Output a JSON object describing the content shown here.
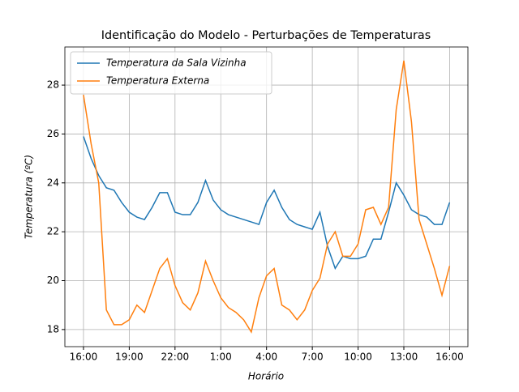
{
  "chart_data": {
    "type": "line",
    "title": "Identificação do Modelo - Perturbações de Temperaturas",
    "xlabel": "Horário",
    "ylabel": "Temperatura (ºC)",
    "x": [
      0,
      0.5,
      1,
      1.5,
      2,
      2.5,
      3,
      3.5,
      4,
      4.5,
      5,
      5.5,
      6,
      6.5,
      7,
      7.5,
      8,
      8.5,
      9,
      9.5,
      10,
      10.5,
      11,
      11.5,
      12,
      12.5,
      13,
      13.5,
      14,
      14.5,
      15,
      15.5,
      16,
      16.5,
      17,
      17.5,
      18,
      18.5,
      19,
      19.5,
      20,
      20.5,
      21,
      21.5,
      22,
      22.5,
      23,
      23.5,
      24
    ],
    "series": [
      {
        "name": "Temperatura da Sala Vizinha",
        "color": "#1f77b4",
        "values": [
          25.9,
          25.0,
          24.3,
          23.8,
          23.7,
          23.2,
          22.8,
          22.6,
          22.5,
          23.0,
          23.6,
          23.6,
          22.8,
          22.7,
          22.7,
          23.2,
          24.1,
          23.3,
          22.9,
          22.7,
          22.6,
          22.5,
          22.4,
          22.3,
          23.2,
          23.7,
          23.0,
          22.5,
          22.3,
          22.2,
          22.1,
          22.8,
          21.4,
          20.5,
          21.0,
          20.9,
          20.9,
          21.0,
          21.7,
          21.7,
          22.8,
          24.0,
          23.5,
          22.9,
          22.7,
          22.6,
          22.3,
          22.3,
          23.2
        ]
      },
      {
        "name": "Temperatura Externa",
        "color": "#ff7f0e",
        "values": [
          27.6,
          25.6,
          24.0,
          18.8,
          18.2,
          18.2,
          18.4,
          19.0,
          18.7,
          19.6,
          20.5,
          20.9,
          19.8,
          19.1,
          18.8,
          19.5,
          20.8,
          20.0,
          19.3,
          18.9,
          18.7,
          18.4,
          17.9,
          19.3,
          20.2,
          20.5,
          19.0,
          18.8,
          18.4,
          18.8,
          19.6,
          20.1,
          21.5,
          22.0,
          21.0,
          21.0,
          21.5,
          22.9,
          23.0,
          22.3,
          23.0,
          27.0,
          29.0,
          26.5,
          22.5,
          21.5,
          20.5,
          19.4,
          20.6
        ]
      }
    ],
    "xlim": [
      -1.22,
      25.2
    ],
    "ylim": [
      17.3,
      29.56
    ],
    "xticks": [
      {
        "value": 0,
        "label": "16:00"
      },
      {
        "value": 3,
        "label": "19:00"
      },
      {
        "value": 6,
        "label": "22:00"
      },
      {
        "value": 9,
        "label": "1:00"
      },
      {
        "value": 12,
        "label": "4:00"
      },
      {
        "value": 15,
        "label": "7:00"
      },
      {
        "value": 18,
        "label": "10:00"
      },
      {
        "value": 21,
        "label": "13:00"
      },
      {
        "value": 24,
        "label": "16:00"
      }
    ],
    "yticks": [
      18,
      20,
      22,
      24,
      26,
      28
    ],
    "grid": true,
    "legend": "upper-left"
  }
}
